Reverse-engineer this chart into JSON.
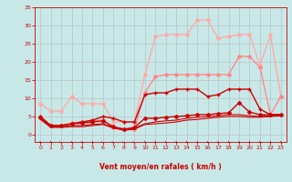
{
  "background_color": "#c8e8e8",
  "grid_color": "#b0b0b0",
  "xlabel": "Vent moyen/en rafales ( km/h )",
  "xlabel_color": "#cc0000",
  "tick_color": "#cc0000",
  "xlim": [
    -0.5,
    23.5
  ],
  "ylim": [
    -2,
    35
  ],
  "yticks": [
    0,
    5,
    10,
    15,
    20,
    25,
    30,
    35
  ],
  "xticks": [
    0,
    1,
    2,
    3,
    4,
    5,
    6,
    7,
    8,
    9,
    10,
    11,
    12,
    13,
    14,
    15,
    16,
    17,
    18,
    19,
    20,
    21,
    22,
    23
  ],
  "series": [
    {
      "x": [
        0,
        1,
        2,
        3,
        4,
        5,
        6,
        7,
        8,
        9,
        10,
        11,
        12,
        13,
        14,
        15,
        16,
        17,
        18,
        19,
        20,
        21,
        22,
        23
      ],
      "y": [
        8.5,
        6.5,
        6.5,
        10.5,
        8.5,
        8.5,
        8.5,
        3.5,
        3.5,
        3.5,
        16.5,
        27.0,
        27.5,
        27.5,
        27.5,
        31.5,
        31.5,
        26.5,
        27.0,
        27.5,
        27.5,
        19.0,
        27.5,
        10.5
      ],
      "color": "#ffaaaa",
      "linewidth": 1.0,
      "marker": "D",
      "markersize": 2.0,
      "zorder": 2
    },
    {
      "x": [
        0,
        1,
        2,
        3,
        4,
        5,
        6,
        7,
        8,
        9,
        10,
        11,
        12,
        13,
        14,
        15,
        16,
        17,
        18,
        19,
        20,
        21,
        22,
        23
      ],
      "y": [
        5.0,
        2.5,
        2.5,
        3.2,
        3.5,
        3.8,
        4.0,
        2.0,
        1.5,
        1.5,
        11.5,
        16.0,
        16.5,
        16.5,
        16.5,
        16.5,
        16.5,
        16.5,
        16.5,
        21.5,
        21.5,
        18.5,
        5.5,
        10.5
      ],
      "color": "#ff8888",
      "linewidth": 1.0,
      "marker": "D",
      "markersize": 2.0,
      "zorder": 2
    },
    {
      "x": [
        0,
        1,
        2,
        3,
        4,
        5,
        6,
        7,
        8,
        9,
        10,
        11,
        12,
        13,
        14,
        15,
        16,
        17,
        18,
        19,
        20,
        21,
        22,
        23
      ],
      "y": [
        5.0,
        2.5,
        2.5,
        3.0,
        3.5,
        4.0,
        5.0,
        4.5,
        3.5,
        3.5,
        11.0,
        11.5,
        11.5,
        12.5,
        12.5,
        12.5,
        10.5,
        11.0,
        12.5,
        12.5,
        12.5,
        7.0,
        5.5,
        5.5
      ],
      "color": "#cc0000",
      "linewidth": 1.0,
      "marker": "+",
      "markersize": 3.5,
      "zorder": 4
    },
    {
      "x": [
        0,
        1,
        2,
        3,
        4,
        5,
        6,
        7,
        8,
        9,
        10,
        11,
        12,
        13,
        14,
        15,
        16,
        17,
        18,
        19,
        20,
        21,
        22,
        23
      ],
      "y": [
        4.8,
        2.5,
        2.5,
        3.0,
        3.2,
        3.5,
        3.8,
        2.2,
        1.5,
        2.0,
        4.5,
        4.5,
        4.8,
        5.0,
        5.2,
        5.5,
        5.5,
        5.8,
        6.0,
        8.8,
        6.2,
        5.5,
        5.5,
        5.5
      ],
      "color": "#cc0000",
      "linewidth": 1.0,
      "marker": "D",
      "markersize": 2.0,
      "zorder": 3
    },
    {
      "x": [
        0,
        1,
        2,
        3,
        4,
        5,
        6,
        7,
        8,
        9,
        10,
        11,
        12,
        13,
        14,
        15,
        16,
        17,
        18,
        19,
        20,
        21,
        22,
        23
      ],
      "y": [
        4.5,
        2.2,
        2.2,
        2.5,
        2.5,
        2.8,
        3.0,
        2.0,
        1.5,
        1.8,
        3.0,
        3.5,
        3.8,
        4.0,
        4.5,
        4.8,
        5.0,
        5.2,
        5.5,
        5.5,
        5.2,
        5.0,
        5.2,
        5.5
      ],
      "color": "#cc0000",
      "linewidth": 0.8,
      "marker": null,
      "markersize": 0,
      "zorder": 2
    },
    {
      "x": [
        0,
        1,
        2,
        3,
        4,
        5,
        6,
        7,
        8,
        9,
        10,
        11,
        12,
        13,
        14,
        15,
        16,
        17,
        18,
        19,
        20,
        21,
        22,
        23
      ],
      "y": [
        4.2,
        2.0,
        2.0,
        2.2,
        2.2,
        2.5,
        2.8,
        1.8,
        1.2,
        1.5,
        2.8,
        3.0,
        3.2,
        3.5,
        4.0,
        4.2,
        4.5,
        4.8,
        5.0,
        5.0,
        4.8,
        4.8,
        5.0,
        5.2
      ],
      "color": "#cc0000",
      "linewidth": 0.8,
      "marker": null,
      "markersize": 0,
      "zorder": 2
    }
  ],
  "wind_arrow_angles": [
    225,
    225,
    270,
    225,
    225,
    225,
    270,
    270,
    270,
    270,
    225,
    225,
    225,
    225,
    225,
    225,
    225,
    225,
    225,
    225,
    225,
    225,
    225,
    225
  ],
  "arrow_color": "#cc0000"
}
